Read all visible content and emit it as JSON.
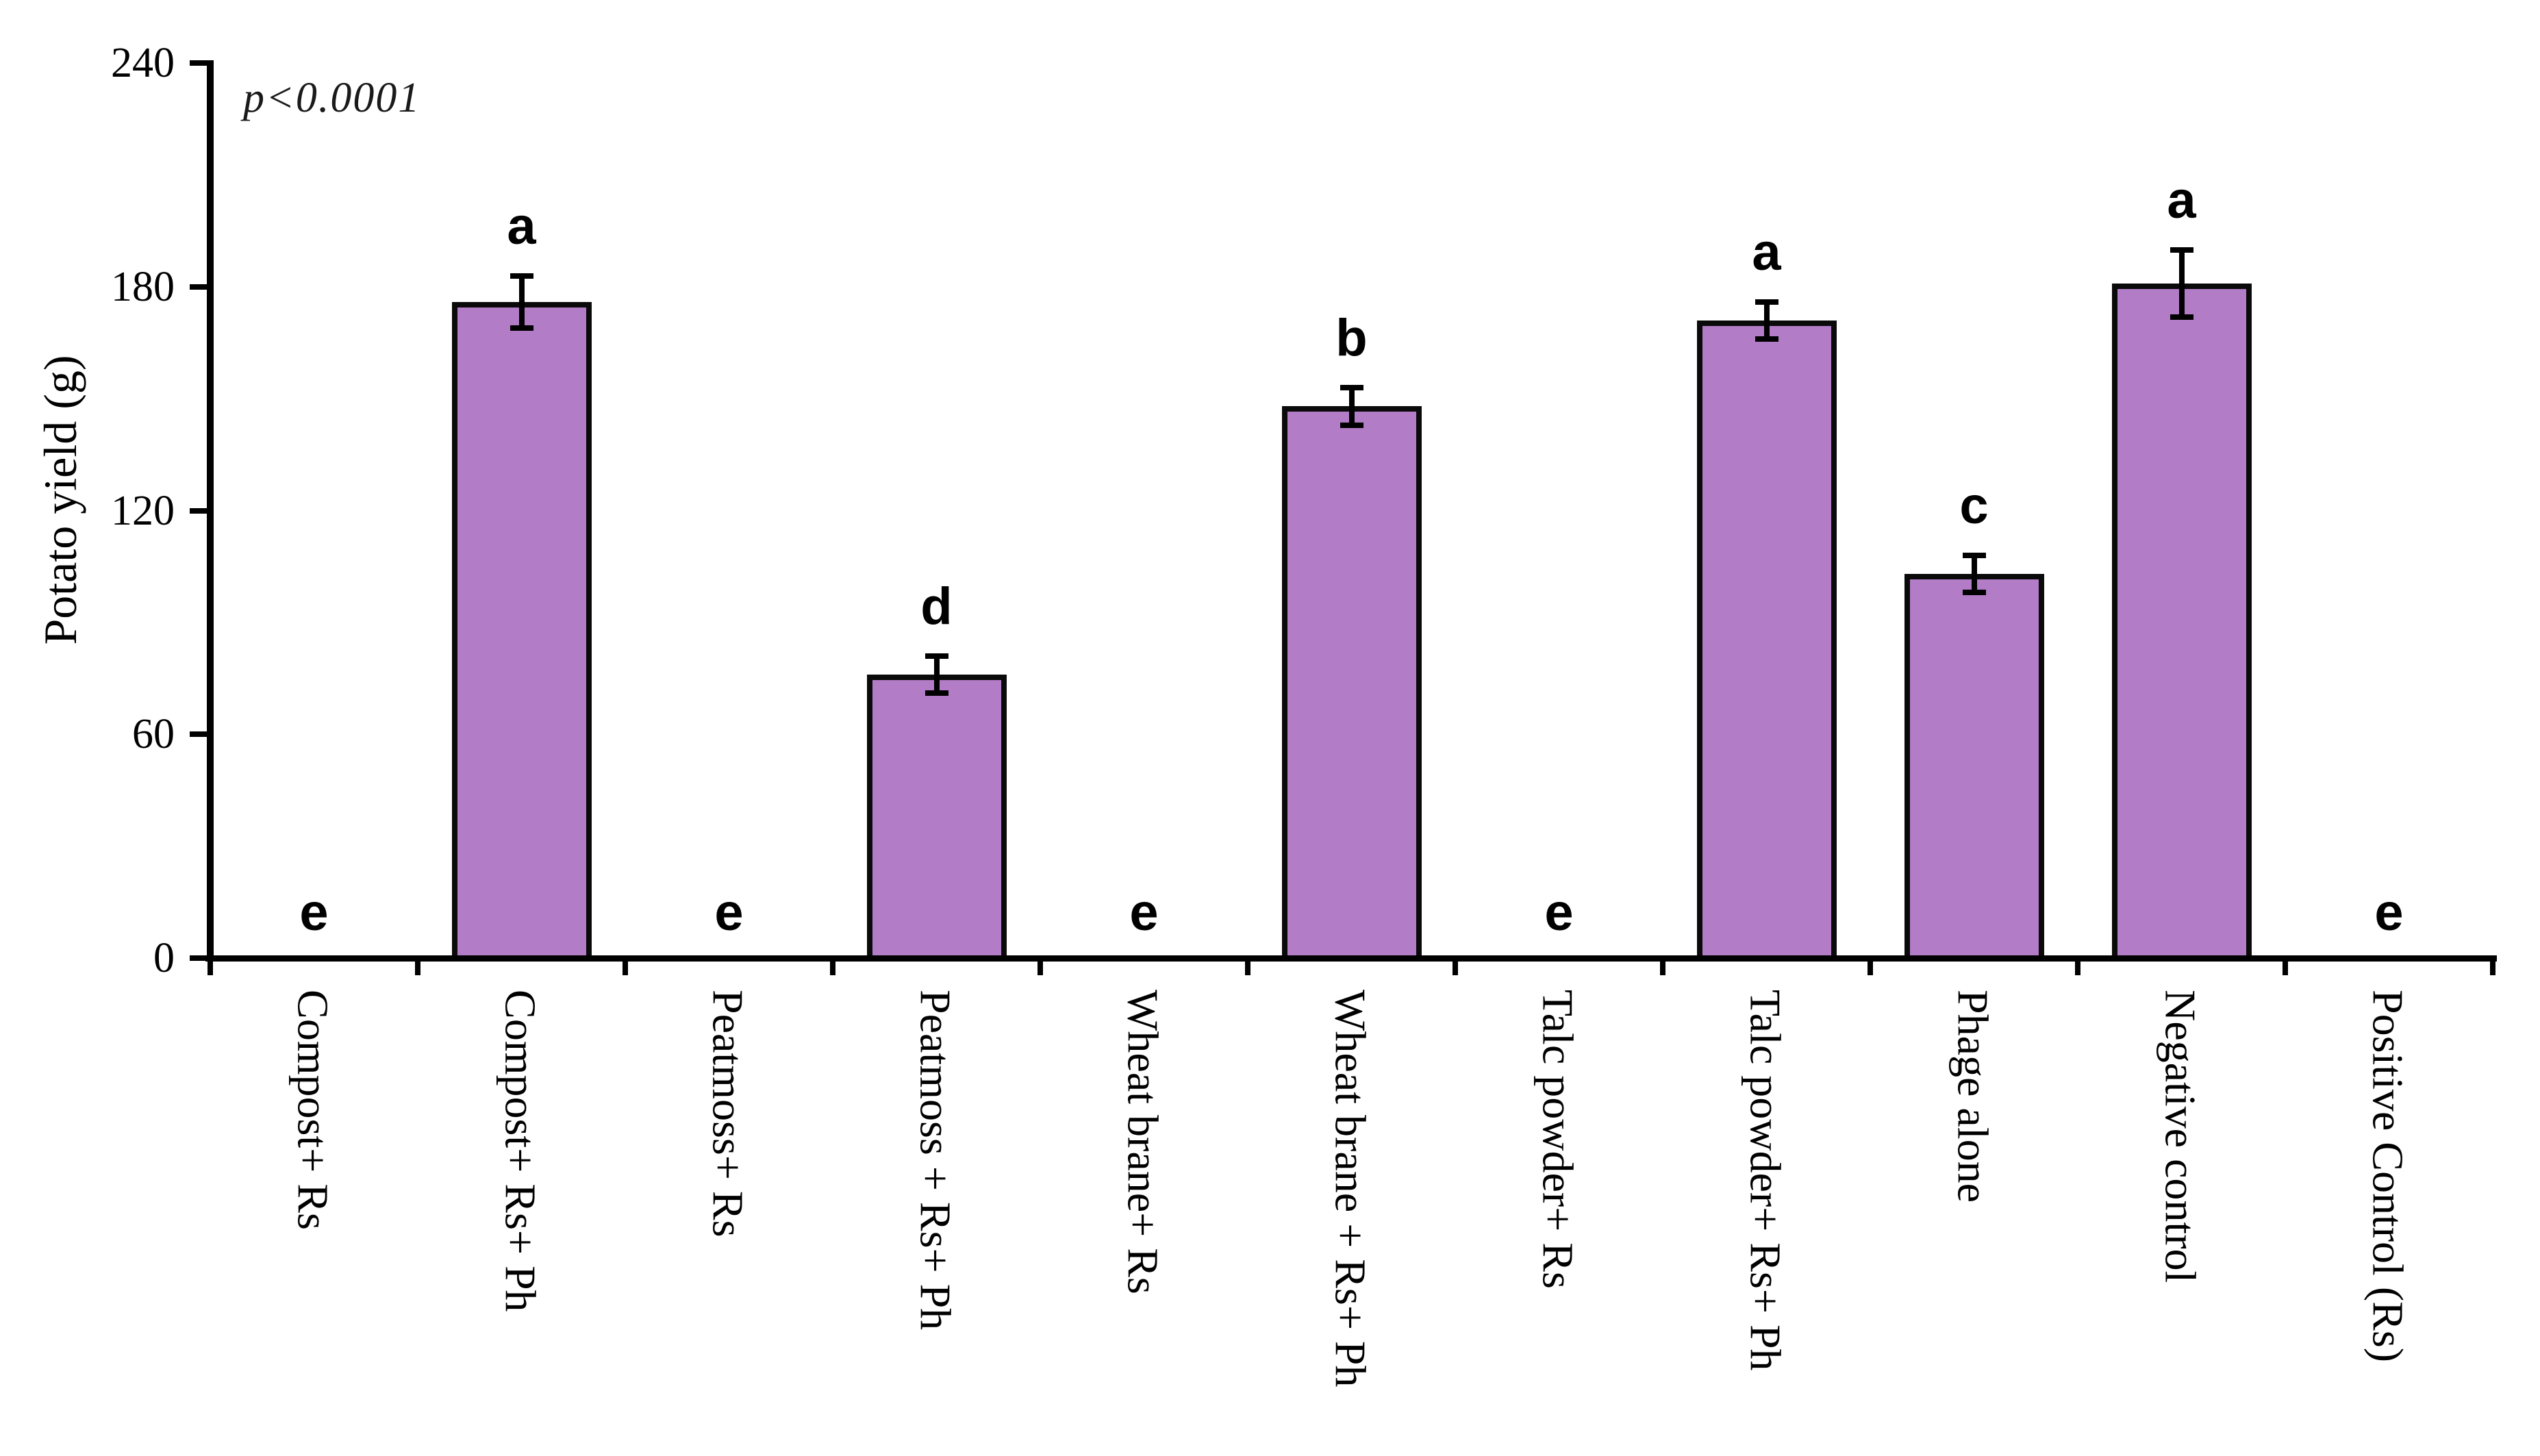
{
  "chart_data": {
    "type": "bar",
    "title": "",
    "xlabel": "",
    "ylabel": "Potato yield (g)",
    "annotation": "p<0.0001",
    "ylim": [
      0,
      240
    ],
    "yticks": [
      0,
      60,
      120,
      180,
      240
    ],
    "grid": false,
    "legend": false,
    "bar_fill_color": "#b37cc7",
    "bar_border_color": "#0a0a0a",
    "categories": [
      "Compost+ Rs",
      "Compost+ Rs+ Ph",
      "Peatmoss+ Rs",
      "Peatmoss + Rs+ Ph",
      "Wheat brane+ Rs",
      "Wheat brane + Rs+ Ph",
      "Talc powder+ Rs",
      "Talc powder+ Rs+ Ph",
      "Phage alone",
      "Negative control",
      "Positive Control (Rs)"
    ],
    "values": [
      0,
      176,
      0,
      76,
      0,
      148,
      0,
      171,
      103,
      181,
      0
    ],
    "error_bars": [
      0,
      7,
      0,
      5,
      0,
      5,
      0,
      5,
      5,
      9,
      0
    ],
    "significance_letters": [
      "e",
      "a",
      "e",
      "d",
      "e",
      "b",
      "e",
      "a",
      "c",
      "a",
      "e"
    ]
  }
}
